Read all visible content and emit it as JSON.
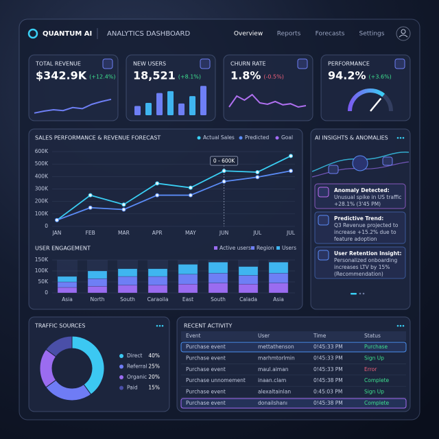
{
  "header": {
    "logo": "QUANTUM AI",
    "title": "ANALYTICS DASHBOARD",
    "nav": [
      "Overview",
      "Reports",
      "Forecasts",
      "Settings"
    ]
  },
  "kpis": [
    {
      "label": "TOTAL REVENUE",
      "value": "$342.9K",
      "change": "(+12.4%)",
      "chart": "line",
      "trend": [
        8,
        15,
        20,
        17,
        28,
        24,
        40,
        50,
        58
      ]
    },
    {
      "label": "NEW USERS",
      "value": "18,521",
      "change": "(+8.1%)",
      "chart": "bars",
      "trend": [
        30,
        40,
        72,
        78,
        38,
        62,
        95
      ]
    },
    {
      "label": "CHURN RATE",
      "value": "1.8%",
      "change": "(-0.5%)",
      "chart": "line",
      "trend": [
        30,
        70,
        55,
        75,
        45,
        40,
        50,
        38,
        42,
        30,
        35
      ]
    },
    {
      "label": "PERFORMANCE",
      "value": "94.2%",
      "change": "(+3.6%)",
      "chart": "gauge",
      "trend": [
        72
      ]
    }
  ],
  "chart_data": [
    {
      "type": "line",
      "title": "SALES PERFORMANCE & REVENUE FORECAST",
      "annotation": "0 - 600K",
      "categories": [
        "JAN",
        "FEB",
        "MAR",
        "APR",
        "MAY",
        "JUN",
        "JUL",
        "JUL"
      ],
      "series": [
        {
          "name": "Actual Sales",
          "color": "#3ad0f5",
          "values": [
            50000,
            250000,
            175000,
            345000,
            310000,
            445000,
            435000,
            565000
          ]
        },
        {
          "name": "Predicted",
          "color": "#5b8cf7",
          "values": [
            50000,
            150000,
            135000,
            250000,
            250000,
            360000,
            395000,
            445000
          ]
        },
        {
          "name": "Goal",
          "color": "#a46cf5",
          "values": [
            null,
            null,
            null,
            null,
            null,
            null,
            null,
            null
          ]
        }
      ],
      "ylim": [
        0,
        600000
      ],
      "yticks": [
        0,
        {
          "value": 100000,
          "label": "100K"
        },
        {
          "value": 200000,
          "label": "200K"
        },
        {
          "value": 300000,
          "label": "300K"
        },
        {
          "value": 400000,
          "label": "400K"
        },
        {
          "value": 500000,
          "label": "500K"
        },
        {
          "value": 600000,
          "label": "600K"
        }
      ],
      "grid": true
    },
    {
      "type": "stacked_bar",
      "title": "USER ENGAGEMENT",
      "categories": [
        "Asia",
        "North",
        "South",
        "Caraoila",
        "East",
        "South",
        "Calada",
        "Asia"
      ],
      "series": [
        {
          "name": "Active users",
          "color": "#9a6cf0",
          "values": [
            25000,
            30000,
            35000,
            35000,
            40000,
            45000,
            40000,
            45000
          ]
        },
        {
          "name": "Region",
          "color": "#6e7ff5",
          "values": [
            25000,
            35000,
            40000,
            40000,
            45000,
            45000,
            40000,
            45000
          ]
        },
        {
          "name": "Users",
          "color": "#3fb5f0",
          "values": [
            25000,
            35000,
            35000,
            35000,
            45000,
            50000,
            40000,
            50000
          ]
        }
      ],
      "ylim": [
        0,
        150000
      ],
      "yticks": [
        0,
        {
          "value": 50000,
          "label": "50K"
        },
        {
          "value": 100000,
          "label": "100K"
        },
        {
          "value": 150000,
          "label": "150K"
        }
      ],
      "grid": true
    },
    {
      "type": "pie",
      "title": "TRAFFIC SOURCES",
      "categories": [
        "Direct",
        "Referral",
        "Organic",
        "Paid"
      ],
      "values": [
        40,
        25,
        20,
        15
      ],
      "value_labels": [
        "40%",
        "25%",
        "20%",
        "15%"
      ],
      "colors": [
        "#3cc8f2",
        "#6f7cf5",
        "#9b6cf0",
        "#4a4fa8"
      ]
    }
  ],
  "insights": {
    "title": "AI INSIGHTS & ANOMALIES",
    "cards": [
      {
        "title": "Anomaly Detected:",
        "lines": [
          "Unusual spike in US traffic",
          "+28.1% (3'45 PM)"
        ]
      },
      {
        "title": "Predictive Trend:",
        "lines": [
          "Q3 Revenue projected to",
          "increase +15.2% due to",
          "feature adoption"
        ]
      },
      {
        "title": "User Retention Insight:",
        "lines": [
          "Personalized onboarding",
          "increases LTV by 15%",
          "(Recommendation)"
        ]
      }
    ]
  },
  "activity": {
    "title": "RECENT ACTIVITY",
    "headers": [
      "Event",
      "User",
      "Time",
      "Status"
    ],
    "rows": [
      [
        "Purchase event",
        "mettathenson",
        "0!45:33 PM",
        "Purchase"
      ],
      [
        "Purchase event",
        "marhmtorlmin",
        "0!45:33 PM",
        "Sign Up"
      ],
      [
        "Purchase event",
        "maul.aiman",
        "0!45:33 PM",
        "Error"
      ],
      [
        "Purchase unnomement",
        "inaan.clam",
        "0!45:38 PM",
        "Complete"
      ],
      [
        "Purchase event",
        "alexaltainlan",
        "0:45:03 PM",
        "Sign Up"
      ],
      [
        "Purchase event",
        "donailshanı",
        "0!45:38 PM",
        "Complete"
      ]
    ]
  }
}
